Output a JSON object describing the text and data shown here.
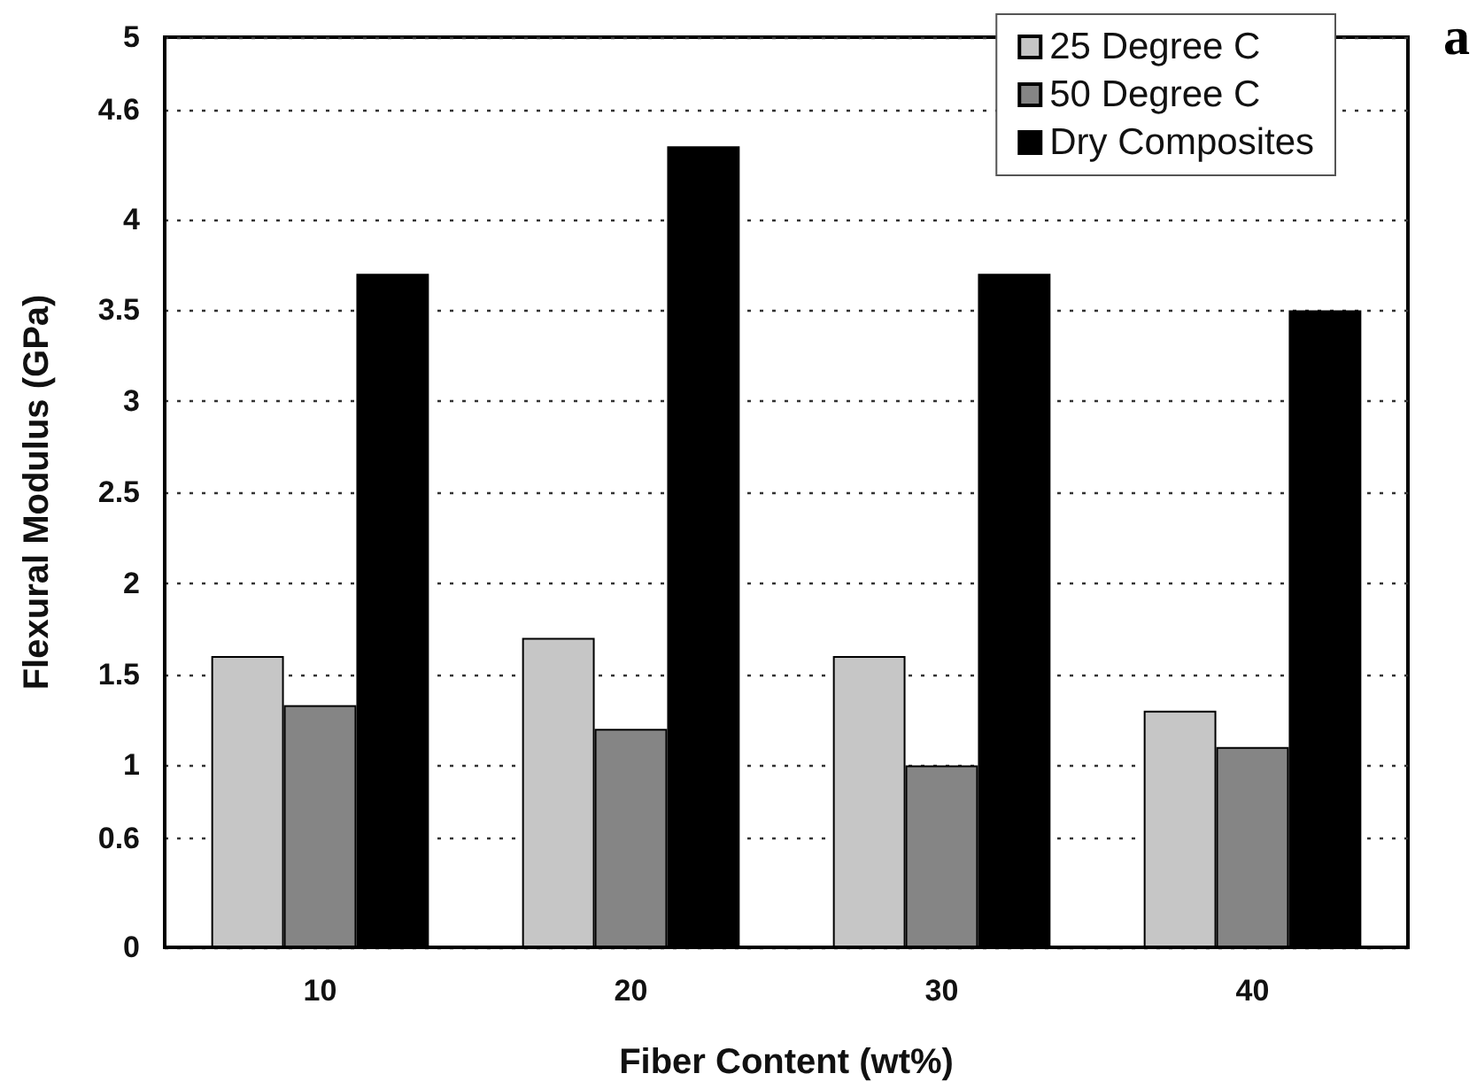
{
  "chart_data": {
    "type": "bar",
    "xlabel": "Fiber Content (wt%)",
    "ylabel": "Flexural Modulus (GPa)",
    "categories": [
      "10",
      "20",
      "30",
      "40"
    ],
    "series": [
      {
        "name": "25 Degree C",
        "color": "#c6c6c6",
        "values": [
          1.6,
          1.7,
          1.6,
          1.3
        ]
      },
      {
        "name": "50 Degree C",
        "color": "#858585",
        "values": [
          1.33,
          1.2,
          1.0,
          1.1
        ]
      },
      {
        "name": "Dry Composites",
        "color": "#000000",
        "values": [
          3.7,
          4.4,
          3.7,
          3.5
        ]
      }
    ],
    "ylim": [
      0,
      5
    ],
    "yticks": [
      0,
      0.6,
      1,
      1.5,
      2,
      2.5,
      3,
      3.5,
      4,
      4.6,
      5
    ],
    "grid": "y",
    "legend": "top right",
    "annotations": [
      "a"
    ]
  }
}
